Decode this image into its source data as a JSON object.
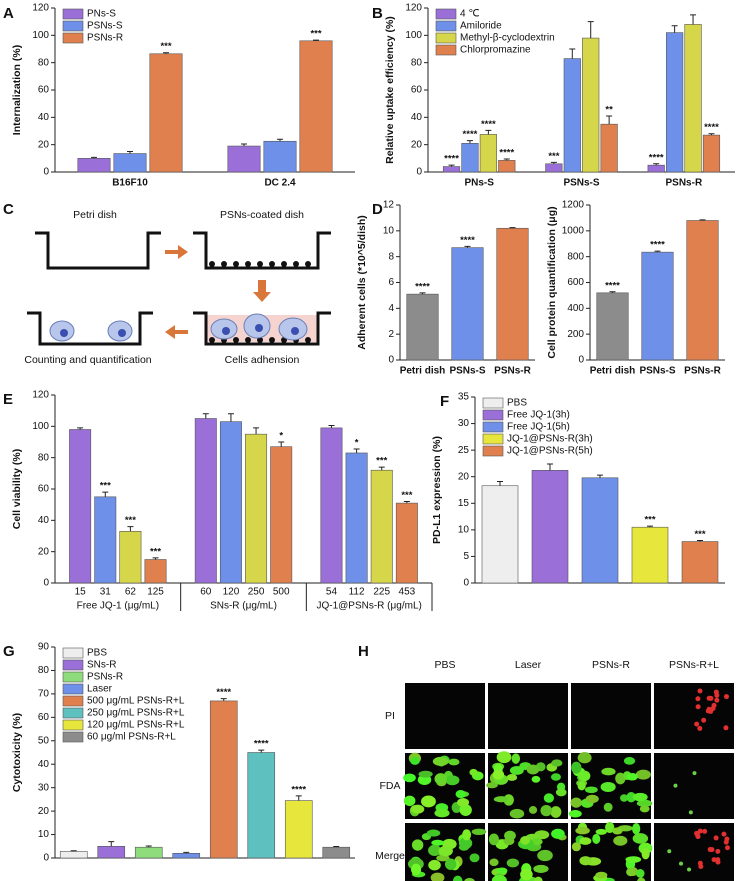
{
  "chart_data": [
    {
      "panel": "A",
      "type": "bar",
      "ylabel": "Internalization (%)",
      "categories": [
        "B16F10",
        "DC 2.4"
      ],
      "series": [
        {
          "name": "PNs-S",
          "color": "#9a6fd8",
          "values": [
            10,
            19
          ],
          "errors": [
            0.7,
            1.5
          ],
          "annotations": [
            null,
            null
          ]
        },
        {
          "name": "PSNs-S",
          "color": "#6f90e8",
          "values": [
            13.5,
            22.5
          ],
          "errors": [
            1.5,
            1.5
          ],
          "annotations": [
            null,
            null
          ]
        },
        {
          "name": "PSNs-R",
          "color": "#e0804f",
          "values": [
            86.5,
            96
          ],
          "errors": [
            0.8,
            0.5
          ],
          "annotations": [
            "***",
            "***"
          ]
        }
      ],
      "ylim": [
        0,
        120
      ],
      "yticks": [
        0,
        20,
        40,
        60,
        80,
        100,
        120
      ],
      "legend": "upper left"
    },
    {
      "panel": "B",
      "type": "bar",
      "ylabel": "Relative uptake efficiency (%)",
      "categories": [
        "PNs-S",
        "PSNs-S",
        "PSNs-R"
      ],
      "series": [
        {
          "name": "4 ℃",
          "color": "#9a6fd8",
          "values": [
            4,
            6,
            5
          ],
          "errors": [
            1,
            1,
            1
          ],
          "annotations": [
            "****",
            "***",
            "****"
          ]
        },
        {
          "name": "Amiloride",
          "color": "#6f90e8",
          "values": [
            21,
            83,
            102
          ],
          "errors": [
            2,
            7,
            5
          ],
          "annotations": [
            "****",
            null,
            null
          ]
        },
        {
          "name": "Methyl-β-cyclodextrin",
          "color": "#d6d64a",
          "values": [
            27.5,
            98,
            108
          ],
          "errors": [
            3,
            12,
            7
          ],
          "annotations": [
            "****",
            null,
            null
          ]
        },
        {
          "name": "Chlorpromazine",
          "color": "#e0804f",
          "values": [
            8.5,
            35,
            27
          ],
          "errors": [
            1,
            6,
            1
          ],
          "annotations": [
            "****",
            "**",
            "****"
          ]
        }
      ],
      "ylim": [
        0,
        120
      ],
      "yticks": [
        0,
        20,
        40,
        60,
        80,
        100,
        120
      ],
      "legend": "upper left"
    },
    {
      "panel": "D",
      "type": "bar",
      "ylabel": "Adherent cells (*10^5/dish)",
      "categories": [
        "Petri dish",
        "PSNs-S",
        "PSNs-R"
      ],
      "values": [
        5.1,
        8.7,
        10.2
      ],
      "errors": [
        0.1,
        0.1,
        0.05
      ],
      "annotations": [
        "****",
        "****",
        null
      ],
      "colors": [
        "#8c8c8c",
        "#6f90e8",
        "#e0804f"
      ],
      "ylim": [
        0,
        12
      ],
      "yticks": [
        0,
        2,
        4,
        6,
        8,
        10,
        12
      ]
    },
    {
      "type": "bar",
      "ylabel": "Cell protein quantification (μg)",
      "categories": [
        "Petri dish",
        "PSNs-S",
        "PSNs-R"
      ],
      "values": [
        520,
        835,
        1080
      ],
      "errors": [
        8,
        8,
        5
      ],
      "annotations": [
        "****",
        "****",
        null
      ],
      "colors": [
        "#8c8c8c",
        "#6f90e8",
        "#e0804f"
      ],
      "ylim": [
        0,
        1200
      ],
      "yticks": [
        0,
        200,
        400,
        600,
        800,
        1000,
        1200
      ]
    },
    {
      "panel": "E",
      "type": "bar",
      "ylabel": "Cell viability (%)",
      "colors": [
        "#9a6fd8",
        "#6f90e8",
        "#d6d64a",
        "#e0804f"
      ],
      "groups": [
        {
          "name": "Free JQ-1 (μg/mL)",
          "categories": [
            "15",
            "31",
            "62",
            "125"
          ],
          "values": [
            98,
            55,
            33,
            15
          ],
          "errors": [
            1,
            3,
            3,
            1
          ],
          "annotations": [
            null,
            "***",
            "***",
            "***"
          ]
        },
        {
          "name": "SNs-R (μg/mL)",
          "categories": [
            "60",
            "120",
            "250",
            "500"
          ],
          "values": [
            105,
            103,
            95,
            87
          ],
          "errors": [
            3,
            5,
            4,
            3
          ],
          "annotations": [
            null,
            null,
            null,
            "*"
          ]
        },
        {
          "name": "JQ-1@PSNs-R (μg/mL)",
          "categories": [
            "54",
            "112",
            "225",
            "453"
          ],
          "values": [
            99,
            83,
            72,
            51
          ],
          "errors": [
            1.5,
            2.5,
            2,
            1
          ],
          "annotations": [
            null,
            "*",
            "***",
            "***"
          ]
        }
      ],
      "ylim": [
        0,
        120
      ],
      "yticks": [
        0,
        20,
        40,
        60,
        80,
        100,
        120
      ]
    },
    {
      "panel": "F",
      "type": "bar",
      "ylabel": "PD-L1 expression (%)",
      "series": [
        {
          "name": "PBS",
          "color": "#eeeeee",
          "values": [
            18.3
          ],
          "errors": [
            0.8
          ],
          "annotations": [
            null
          ]
        },
        {
          "name": "Free JQ-1(3h)",
          "color": "#9a6fd8",
          "values": [
            21.2
          ],
          "errors": [
            1.2
          ],
          "annotations": [
            null
          ]
        },
        {
          "name": "Free JQ-1(5h)",
          "color": "#6f90e8",
          "values": [
            19.8
          ],
          "errors": [
            0.5
          ],
          "annotations": [
            null
          ]
        },
        {
          "name": "JQ-1@PSNs-R(3h)",
          "color": "#e6e63c",
          "values": [
            10.5
          ],
          "errors": [
            0.2
          ],
          "annotations": [
            "***"
          ]
        },
        {
          "name": "JQ-1@PSNs-R(5h)",
          "color": "#e0804f",
          "values": [
            7.8
          ],
          "errors": [
            0.2
          ],
          "annotations": [
            "***"
          ]
        }
      ],
      "ylim": [
        0,
        35
      ],
      "yticks": [
        0,
        5,
        10,
        15,
        20,
        25,
        30,
        35
      ],
      "legend": "upper left"
    },
    {
      "panel": "G",
      "type": "bar",
      "ylabel": "Cytotoxicity (%)",
      "series": [
        {
          "name": "PBS",
          "color": "#eeeeee",
          "values": [
            2.8
          ],
          "errors": [
            0.3
          ],
          "annotations": [
            null
          ]
        },
        {
          "name": "SNs-R",
          "color": "#9a6fd8",
          "values": [
            5
          ],
          "errors": [
            2
          ],
          "annotations": [
            null
          ]
        },
        {
          "name": "PSNs-R",
          "color": "#8fdc7c",
          "values": [
            4.6
          ],
          "errors": [
            0.5
          ],
          "annotations": [
            null
          ]
        },
        {
          "name": "Laser",
          "color": "#6f90e8",
          "values": [
            2
          ],
          "errors": [
            0.4
          ],
          "annotations": [
            null
          ]
        },
        {
          "name": "500 μg/mL PSNs-R+L",
          "color": "#e0804f",
          "values": [
            67
          ],
          "errors": [
            1
          ],
          "annotations": [
            "****"
          ]
        },
        {
          "name": "250 μg/mL PSNs-R+L",
          "color": "#5fc0c0",
          "values": [
            45
          ],
          "errors": [
            1
          ],
          "annotations": [
            "****"
          ]
        },
        {
          "name": "120 μg/mL PSNs-R+L",
          "color": "#e6e63c",
          "values": [
            24.5
          ],
          "errors": [
            2
          ],
          "annotations": [
            "****"
          ]
        },
        {
          "name": "60 μg/ml PSNs-R+L",
          "color": "#8c8c8c",
          "values": [
            4.6
          ],
          "errors": [
            0.3
          ],
          "annotations": [
            null
          ]
        }
      ],
      "ylim": [
        0,
        90
      ],
      "yticks": [
        0,
        10,
        20,
        30,
        40,
        50,
        60,
        70,
        80,
        90
      ],
      "legend": "upper left"
    }
  ],
  "diagram": {
    "panel": "C",
    "labels": [
      "Petri dish",
      "PSNs-coated dish",
      "Cells adhension",
      "Counting and quantification"
    ]
  },
  "image_grid": {
    "panel": "H",
    "columns": [
      "PBS",
      "Laser",
      "PSNs-R",
      "PSNs-R+L"
    ],
    "rows": [
      "PI",
      "FDA",
      "Merge"
    ]
  }
}
